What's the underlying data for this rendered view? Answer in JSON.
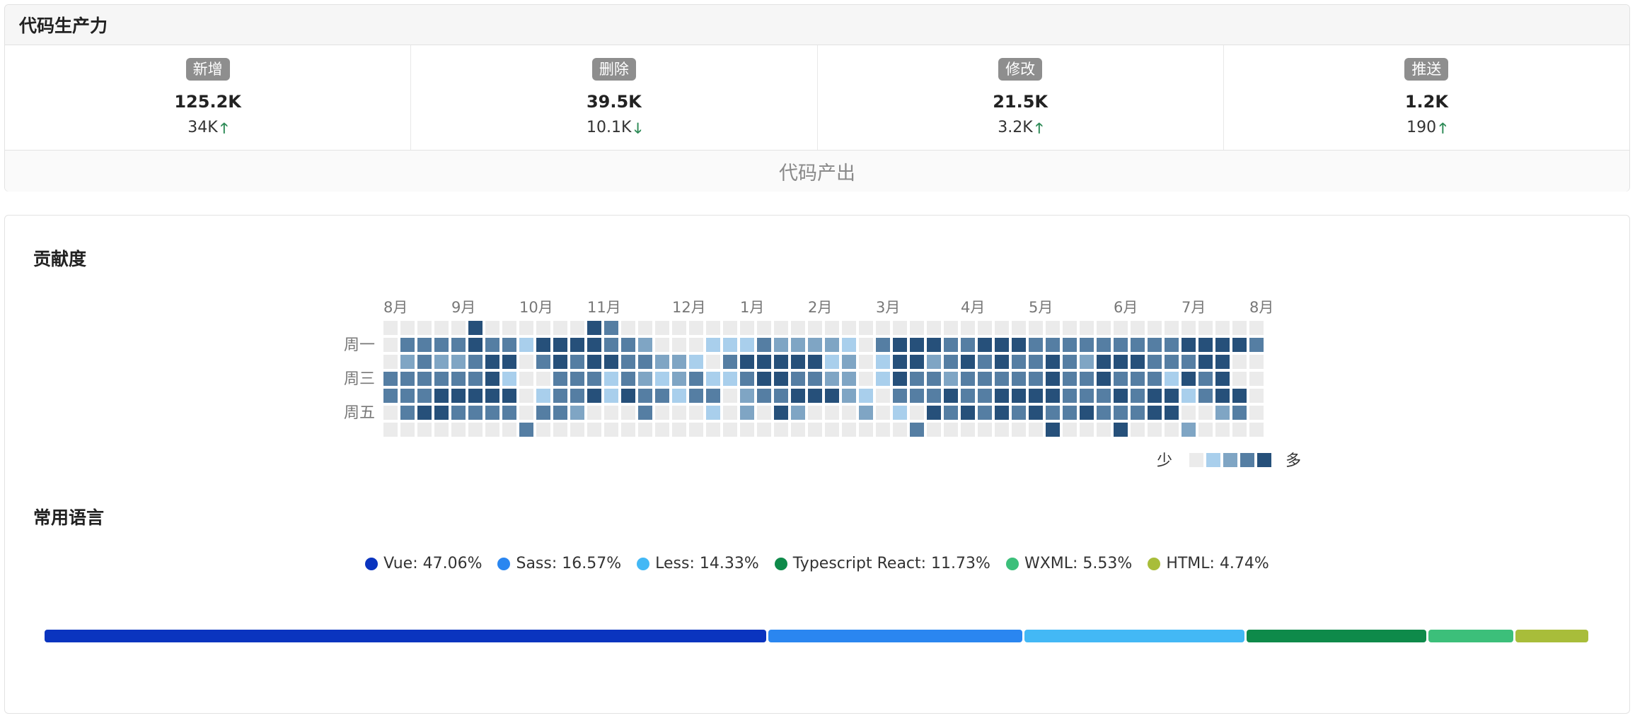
{
  "productivity": {
    "title": "代码生产力",
    "footer": "代码产出",
    "stats": [
      {
        "label": "新增",
        "value": "125.2K",
        "delta": "34K",
        "trend": "up"
      },
      {
        "label": "删除",
        "value": "39.5K",
        "delta": "10.1K",
        "trend": "down"
      },
      {
        "label": "修改",
        "value": "21.5K",
        "delta": "3.2K",
        "trend": "up"
      },
      {
        "label": "推送",
        "value": "1.2K",
        "delta": "190",
        "trend": "up"
      }
    ]
  },
  "contribution": {
    "title": "贡献度",
    "months": [
      {
        "label": "8月",
        "col": 0
      },
      {
        "label": "9月",
        "col": 4
      },
      {
        "label": "10月",
        "col": 8
      },
      {
        "label": "11月",
        "col": 12
      },
      {
        "label": "12月",
        "col": 17
      },
      {
        "label": "1月",
        "col": 21
      },
      {
        "label": "2月",
        "col": 25
      },
      {
        "label": "3月",
        "col": 29
      },
      {
        "label": "4月",
        "col": 34
      },
      {
        "label": "5月",
        "col": 38
      },
      {
        "label": "6月",
        "col": 43
      },
      {
        "label": "7月",
        "col": 47
      },
      {
        "label": "8月",
        "col": 51
      }
    ],
    "weekday_labels": [
      {
        "label": "周一",
        "row": 1
      },
      {
        "label": "周三",
        "row": 3
      },
      {
        "label": "周五",
        "row": 5
      }
    ],
    "legend_less": "少",
    "legend_more": "多",
    "levels_colors": [
      "#ebebeb",
      "#a9cfec",
      "#7fa5c4",
      "#557ea3",
      "#26507a"
    ],
    "grid": [
      "0000040000004300000000000000000000000000000000000000",
      "0333343314444332000111322221034443344433333333344443",
      "0232234403434433221034444412014423434334324443334400",
      "3333334100333132123113443322014332333334334333143400",
      "3334444401334143313302334442103334334444333434413440",
      "0344333303320003000102042000201043434343343334400230",
      "0000000030000000000000000000000300000004000400020000"
    ]
  },
  "languages": {
    "title": "常用语言",
    "items": [
      {
        "name": "Vue",
        "text": "Vue: 47.06%",
        "pct": 47.06,
        "color": "#0a34bf"
      },
      {
        "name": "Sass",
        "text": "Sass: 16.57%",
        "pct": 16.57,
        "color": "#2a86f0"
      },
      {
        "name": "Less",
        "text": "Less: 14.33%",
        "pct": 14.33,
        "color": "#43b8f5"
      },
      {
        "name": "Typescript React",
        "text": "Typescript React: 11.73%",
        "pct": 11.73,
        "color": "#0e8a4a"
      },
      {
        "name": "WXML",
        "text": "WXML: 5.53%",
        "pct": 5.53,
        "color": "#3cbf7a"
      },
      {
        "name": "HTML",
        "text": "HTML: 4.74%",
        "pct": 4.74,
        "color": "#a8bd3a"
      }
    ]
  }
}
